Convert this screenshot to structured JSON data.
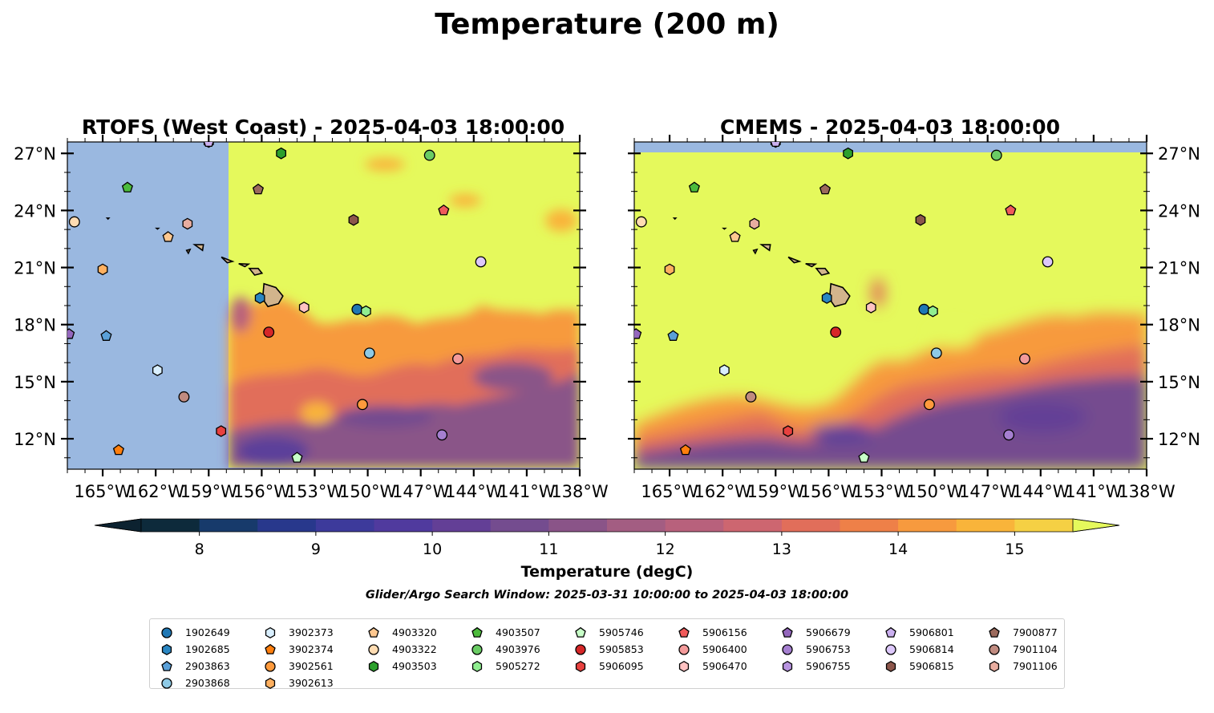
{
  "suptitle": "Temperature (200 m)",
  "search_window": "Glider/Argo Search Window: 2025-03-31 10:00:00 to 2025-04-03 18:00:00",
  "colors": {
    "land": "#d2b48c",
    "missing": "#9ab8e0",
    "over_max": "#e5f95c",
    "under_min": "#0c2230",
    "ramp": [
      "#0d2a3b",
      "#173a6b",
      "#28388c",
      "#3d3a9b",
      "#503a9e",
      "#633f96",
      "#744c8f",
      "#8a5488",
      "#a35d82",
      "#b8617c",
      "#cd6670",
      "#e16e5a",
      "#ee8048",
      "#f79a3e",
      "#f9b43a",
      "#f5d044"
    ]
  },
  "chart_data": [
    {
      "type": "heatmap",
      "title": "RTOFS (West Coast) - 2025-04-03 18:00:00",
      "xticks": [
        "165°W",
        "162°W",
        "159°W",
        "156°W",
        "153°W",
        "150°W",
        "147°W",
        "144°W",
        "141°W",
        "138°W"
      ],
      "yticks": [
        "12°N",
        "15°N",
        "18°N",
        "21°N",
        "24°N",
        "27°N"
      ],
      "xlim": [
        -167,
        -138
      ],
      "ylim": [
        10.4,
        27.6
      ],
      "tick_side": "left",
      "model_coverage_west_lon": -157.9,
      "model_coverage_south_lat": 10.5
    },
    {
      "type": "heatmap",
      "title": "CMEMS - 2025-04-03 18:00:00",
      "xticks": [
        "165°W",
        "162°W",
        "159°W",
        "156°W",
        "153°W",
        "150°W",
        "147°W",
        "144°W",
        "141°W",
        "138°W"
      ],
      "yticks": [
        "12°N",
        "15°N",
        "18°N",
        "21°N",
        "24°N",
        "27°N"
      ],
      "xlim": [
        -167,
        -138
      ],
      "ylim": [
        10.4,
        27.6
      ],
      "tick_side": "right",
      "model_coverage_north_lat": 27.1
    }
  ],
  "colorbar": {
    "label": "Temperature (degC)",
    "ticks": [
      "8",
      "9",
      "10",
      "11",
      "12",
      "13",
      "14",
      "15"
    ],
    "min": 7.5,
    "max": 15.5,
    "step": 0.5
  },
  "floats": [
    {
      "id": "1902649",
      "marker": "circle",
      "color": "#1f77b4",
      "lon": -150.6,
      "lat": 18.8
    },
    {
      "id": "1902685",
      "marker": "hexagon",
      "color": "#2a86c2",
      "lon": -156.1,
      "lat": 19.4
    },
    {
      "id": "2903863",
      "marker": "pentagon",
      "color": "#5aa0d8",
      "lon": -164.8,
      "lat": 17.4
    },
    {
      "id": "2903868",
      "marker": "circle",
      "color": "#8ecae6",
      "lon": -149.9,
      "lat": 16.5
    },
    {
      "id": "3902373",
      "marker": "hexagon",
      "color": "#d9efff",
      "lon": -161.9,
      "lat": 15.6
    },
    {
      "id": "3902374",
      "marker": "pentagon",
      "color": "#ff7f0e",
      "lon": -164.1,
      "lat": 11.4
    },
    {
      "id": "3902561",
      "marker": "circle",
      "color": "#ff9a3c",
      "lon": -150.3,
      "lat": 13.8
    },
    {
      "id": "3902613",
      "marker": "hexagon",
      "color": "#ffb060",
      "lon": -165.0,
      "lat": 20.9
    },
    {
      "id": "4903320",
      "marker": "pentagon",
      "color": "#ffc890",
      "lon": -161.3,
      "lat": 22.6
    },
    {
      "id": "4903322",
      "marker": "circle",
      "color": "#ffdcb2",
      "lon": -166.6,
      "lat": 23.4
    },
    {
      "id": "4903503",
      "marker": "hexagon",
      "color": "#2ca02c",
      "lon": -154.9,
      "lat": 27.0
    },
    {
      "id": "4903507",
      "marker": "pentagon",
      "color": "#4cbb3c",
      "lon": -163.6,
      "lat": 25.2
    },
    {
      "id": "4903976",
      "marker": "circle",
      "color": "#6acc64",
      "lon": -146.5,
      "lat": 26.9
    },
    {
      "id": "5905272",
      "marker": "hexagon",
      "color": "#90ee90",
      "lon": -150.1,
      "lat": 18.7
    },
    {
      "id": "5905746",
      "marker": "pentagon",
      "color": "#c8ffc8",
      "lon": -154.0,
      "lat": 11.0
    },
    {
      "id": "5905853",
      "marker": "circle",
      "color": "#d62728",
      "lon": -155.6,
      "lat": 17.6
    },
    {
      "id": "5906095",
      "marker": "hexagon",
      "color": "#e8413f",
      "lon": -158.3,
      "lat": 12.4
    },
    {
      "id": "5906156",
      "marker": "pentagon",
      "color": "#f05a5a",
      "lon": -145.7,
      "lat": 24.0
    },
    {
      "id": "5906400",
      "marker": "circle",
      "color": "#f39a9a",
      "lon": -144.9,
      "lat": 16.2
    },
    {
      "id": "5906470",
      "marker": "hexagon",
      "color": "#ffc2c2",
      "lon": -153.6,
      "lat": 18.9
    },
    {
      "id": "5906679",
      "marker": "pentagon",
      "color": "#9467bd",
      "lon": -166.9,
      "lat": 17.5
    },
    {
      "id": "5906753",
      "marker": "circle",
      "color": "#a57fd0",
      "lon": -145.8,
      "lat": 12.2
    },
    {
      "id": "5906755",
      "marker": "hexagon",
      "color": "#b894e0",
      "lon": -159.0,
      "lat": 27.6
    },
    {
      "id": "5906801",
      "marker": "pentagon",
      "color": "#cbb0f0",
      "lon": -159.0,
      "lat": 27.6
    },
    {
      "id": "5906814",
      "marker": "circle",
      "color": "#ddc8fb",
      "lon": -143.6,
      "lat": 21.3
    },
    {
      "id": "5906815",
      "marker": "hexagon",
      "color": "#8c564b",
      "lon": -150.8,
      "lat": 23.5
    },
    {
      "id": "7900877",
      "marker": "pentagon",
      "color": "#9c6a5c",
      "lon": -156.2,
      "lat": 25.1
    },
    {
      "id": "7901104",
      "marker": "circle",
      "color": "#c08b80",
      "lon": -160.4,
      "lat": 14.2
    },
    {
      "id": "7901106",
      "marker": "hexagon",
      "color": "#e8ada0",
      "lon": -160.2,
      "lat": 23.3
    }
  ]
}
